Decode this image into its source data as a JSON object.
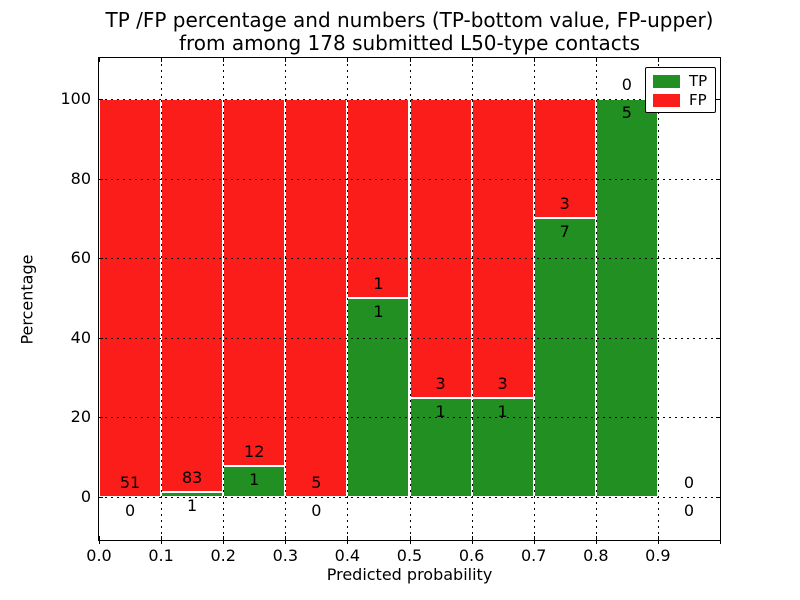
{
  "header": {
    "title_line1": "TP /FP percentage and numbers (TP-bottom value, FP-upper)",
    "title_line2": "from among 178 submitted L50-type contacts"
  },
  "chart_data": {
    "type": "bar",
    "stacked": true,
    "title": "TP /FP percentage and numbers (TP-bottom value, FP-upper) from among 178 submitted L50-type contacts",
    "total_submitted_contacts": 178,
    "xlabel": "Predicted probability",
    "ylabel": "Percentage",
    "xlim": [
      0.0,
      1.0
    ],
    "ylim": [
      0,
      100
    ],
    "yticks": [
      0,
      20,
      40,
      60,
      80,
      100
    ],
    "xticks": [
      "0.0",
      "0.1",
      "0.2",
      "0.3",
      "0.4",
      "0.5",
      "0.6",
      "0.7",
      "0.8",
      "0.9"
    ],
    "grid": "dotted",
    "bar_edge_color": "#ffffff",
    "legend": {
      "position": "upper right",
      "entries": [
        {
          "label": "TP",
          "color": "#228f22"
        },
        {
          "label": "FP",
          "color": "#fa1d1a"
        }
      ]
    },
    "bins": [
      {
        "range": "0.0-0.1",
        "tp": 0,
        "fp": 51,
        "tp_pct": 0,
        "fp_pct": 100
      },
      {
        "range": "0.1-0.2",
        "tp": 1,
        "fp": 83,
        "tp_pct": 1.19,
        "fp_pct": 98.81
      },
      {
        "range": "0.2-0.3",
        "tp": 1,
        "fp": 12,
        "tp_pct": 7.69,
        "fp_pct": 92.31
      },
      {
        "range": "0.3-0.4",
        "tp": 0,
        "fp": 5,
        "tp_pct": 0,
        "fp_pct": 100
      },
      {
        "range": "0.4-0.5",
        "tp": 1,
        "fp": 1,
        "tp_pct": 50,
        "fp_pct": 50
      },
      {
        "range": "0.5-0.6",
        "tp": 1,
        "fp": 3,
        "tp_pct": 25,
        "fp_pct": 75
      },
      {
        "range": "0.6-0.7",
        "tp": 1,
        "fp": 3,
        "tp_pct": 25,
        "fp_pct": 75
      },
      {
        "range": "0.7-0.8",
        "tp": 7,
        "fp": 3,
        "tp_pct": 70,
        "fp_pct": 30
      },
      {
        "range": "0.8-0.9",
        "tp": 5,
        "fp": 0,
        "tp_pct": 100,
        "fp_pct": 0
      },
      {
        "range": "0.9-1.0",
        "tp": 0,
        "fp": 0,
        "tp_pct": 0,
        "fp_pct": 0
      }
    ]
  }
}
